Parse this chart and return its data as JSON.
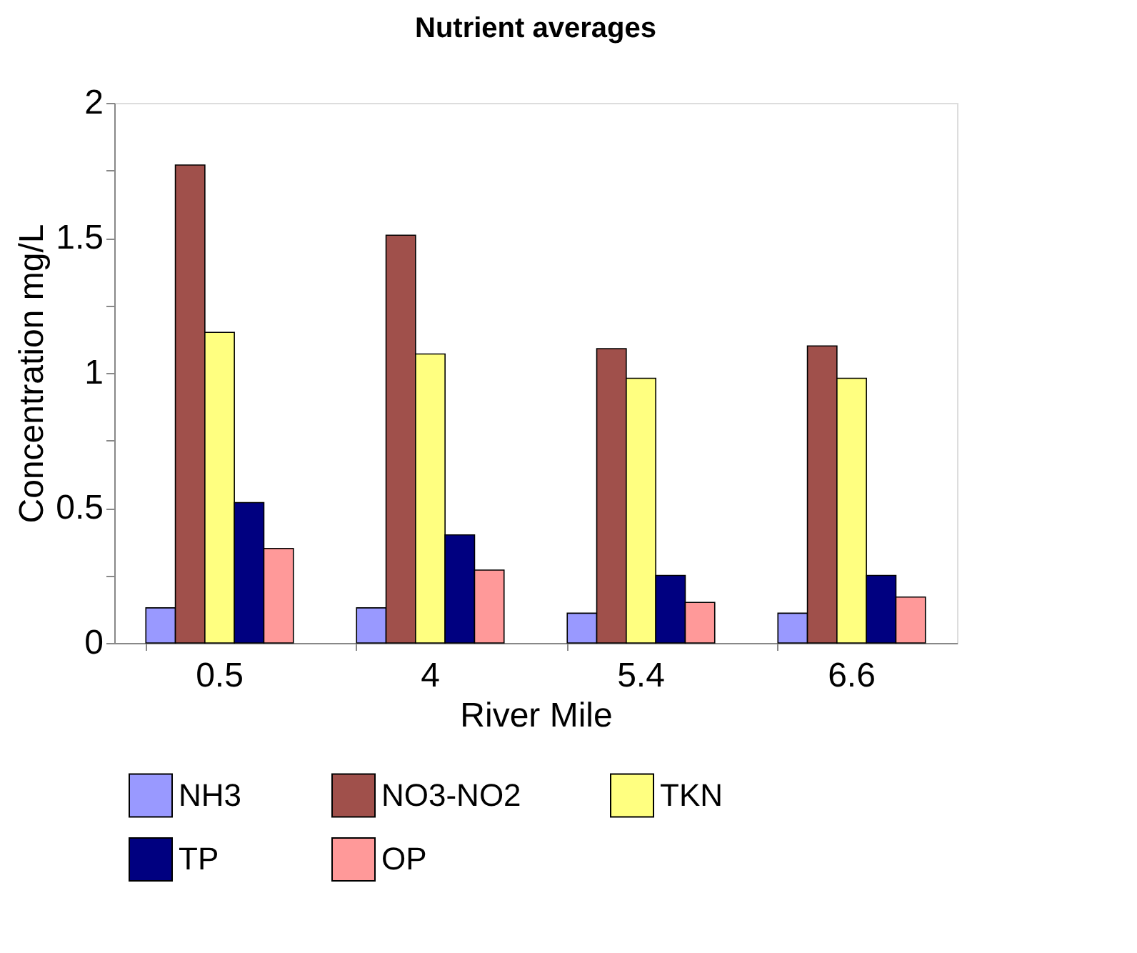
{
  "chart_data": {
    "type": "bar",
    "title": "Nutrient averages",
    "xlabel": "River Mile",
    "ylabel": "Concentration mg/L",
    "categories": [
      "0.5",
      "4",
      "5.4",
      "6.6"
    ],
    "series": [
      {
        "name": "NH3",
        "color": "#9999ff",
        "values": [
          0.13,
          0.13,
          0.11,
          0.11
        ]
      },
      {
        "name": "NO3-NO2",
        "color": "#a0504b",
        "values": [
          1.77,
          1.51,
          1.09,
          1.1
        ]
      },
      {
        "name": "TKN",
        "color": "#ffff80",
        "values": [
          1.15,
          1.07,
          0.98,
          0.98
        ]
      },
      {
        "name": "TP",
        "color": "#000080",
        "values": [
          0.52,
          0.4,
          0.25,
          0.25
        ]
      },
      {
        "name": "OP",
        "color": "#ff9999",
        "values": [
          0.35,
          0.27,
          0.15,
          0.17
        ]
      }
    ],
    "ylim": [
      0,
      2
    ],
    "yticks": [
      0,
      {
        "value": 0.25,
        "label": null
      },
      0.5,
      {
        "value": 0.75,
        "label": null
      },
      1,
      {
        "value": 1.25,
        "label": null
      },
      1.5,
      {
        "value": 1.75,
        "label": null
      },
      2
    ],
    "grid": false,
    "legend": "bottom"
  }
}
